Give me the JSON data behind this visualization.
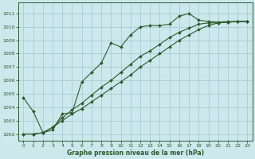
{
  "bg_color": "#cce8ec",
  "grid_color": "#aaccd0",
  "line_color": "#2d5a2d",
  "xlabel": "Graphe pression niveau de la mer (hPa)",
  "xlim": [
    -0.5,
    23.5
  ],
  "ylim": [
    1001.5,
    1011.8
  ],
  "yticks": [
    1002,
    1003,
    1004,
    1005,
    1006,
    1007,
    1008,
    1009,
    1010,
    1011
  ],
  "xticks": [
    0,
    1,
    2,
    3,
    4,
    5,
    6,
    7,
    8,
    9,
    10,
    11,
    12,
    13,
    14,
    15,
    16,
    17,
    18,
    19,
    20,
    21,
    22,
    23
  ],
  "series1_x": [
    0,
    1,
    2,
    3,
    4,
    5,
    6,
    7,
    8,
    9,
    10,
    11,
    12,
    13,
    14,
    15,
    16,
    17,
    18,
    19,
    20,
    21,
    22,
    23
  ],
  "series1_y": [
    1004.7,
    1003.7,
    1002.1,
    1002.3,
    1003.5,
    1003.6,
    1005.9,
    1006.6,
    1007.3,
    1008.8,
    1008.5,
    1009.4,
    1010.0,
    1010.1,
    1010.1,
    1010.2,
    1010.8,
    1011.0,
    1010.5,
    1010.4,
    1010.35,
    1010.4,
    1010.4,
    1010.4
  ],
  "series2_x": [
    0,
    1,
    2,
    3,
    4,
    5,
    6,
    7,
    8,
    9,
    10,
    11,
    12,
    13,
    14,
    15,
    16,
    17,
    18,
    19,
    20,
    21,
    22,
    23
  ],
  "series2_y": [
    1002.0,
    1002.0,
    1002.1,
    1002.5,
    1003.2,
    1003.8,
    1004.3,
    1004.9,
    1005.5,
    1006.0,
    1006.6,
    1007.2,
    1007.8,
    1008.2,
    1008.7,
    1009.2,
    1009.6,
    1009.9,
    1010.2,
    1010.3,
    1010.3,
    1010.35,
    1010.4,
    1010.4
  ],
  "series3_x": [
    0,
    1,
    2,
    3,
    4,
    5,
    6,
    7,
    8,
    9,
    10,
    11,
    12,
    13,
    14,
    15,
    16,
    17,
    18,
    19,
    20,
    21,
    22,
    23
  ],
  "series3_y": [
    1002.0,
    1002.0,
    1002.1,
    1002.5,
    1003.0,
    1003.5,
    1003.9,
    1004.4,
    1004.9,
    1005.4,
    1005.9,
    1006.4,
    1007.0,
    1007.5,
    1008.0,
    1008.5,
    1009.0,
    1009.4,
    1009.8,
    1010.1,
    1010.3,
    1010.35,
    1010.4,
    1010.4
  ]
}
